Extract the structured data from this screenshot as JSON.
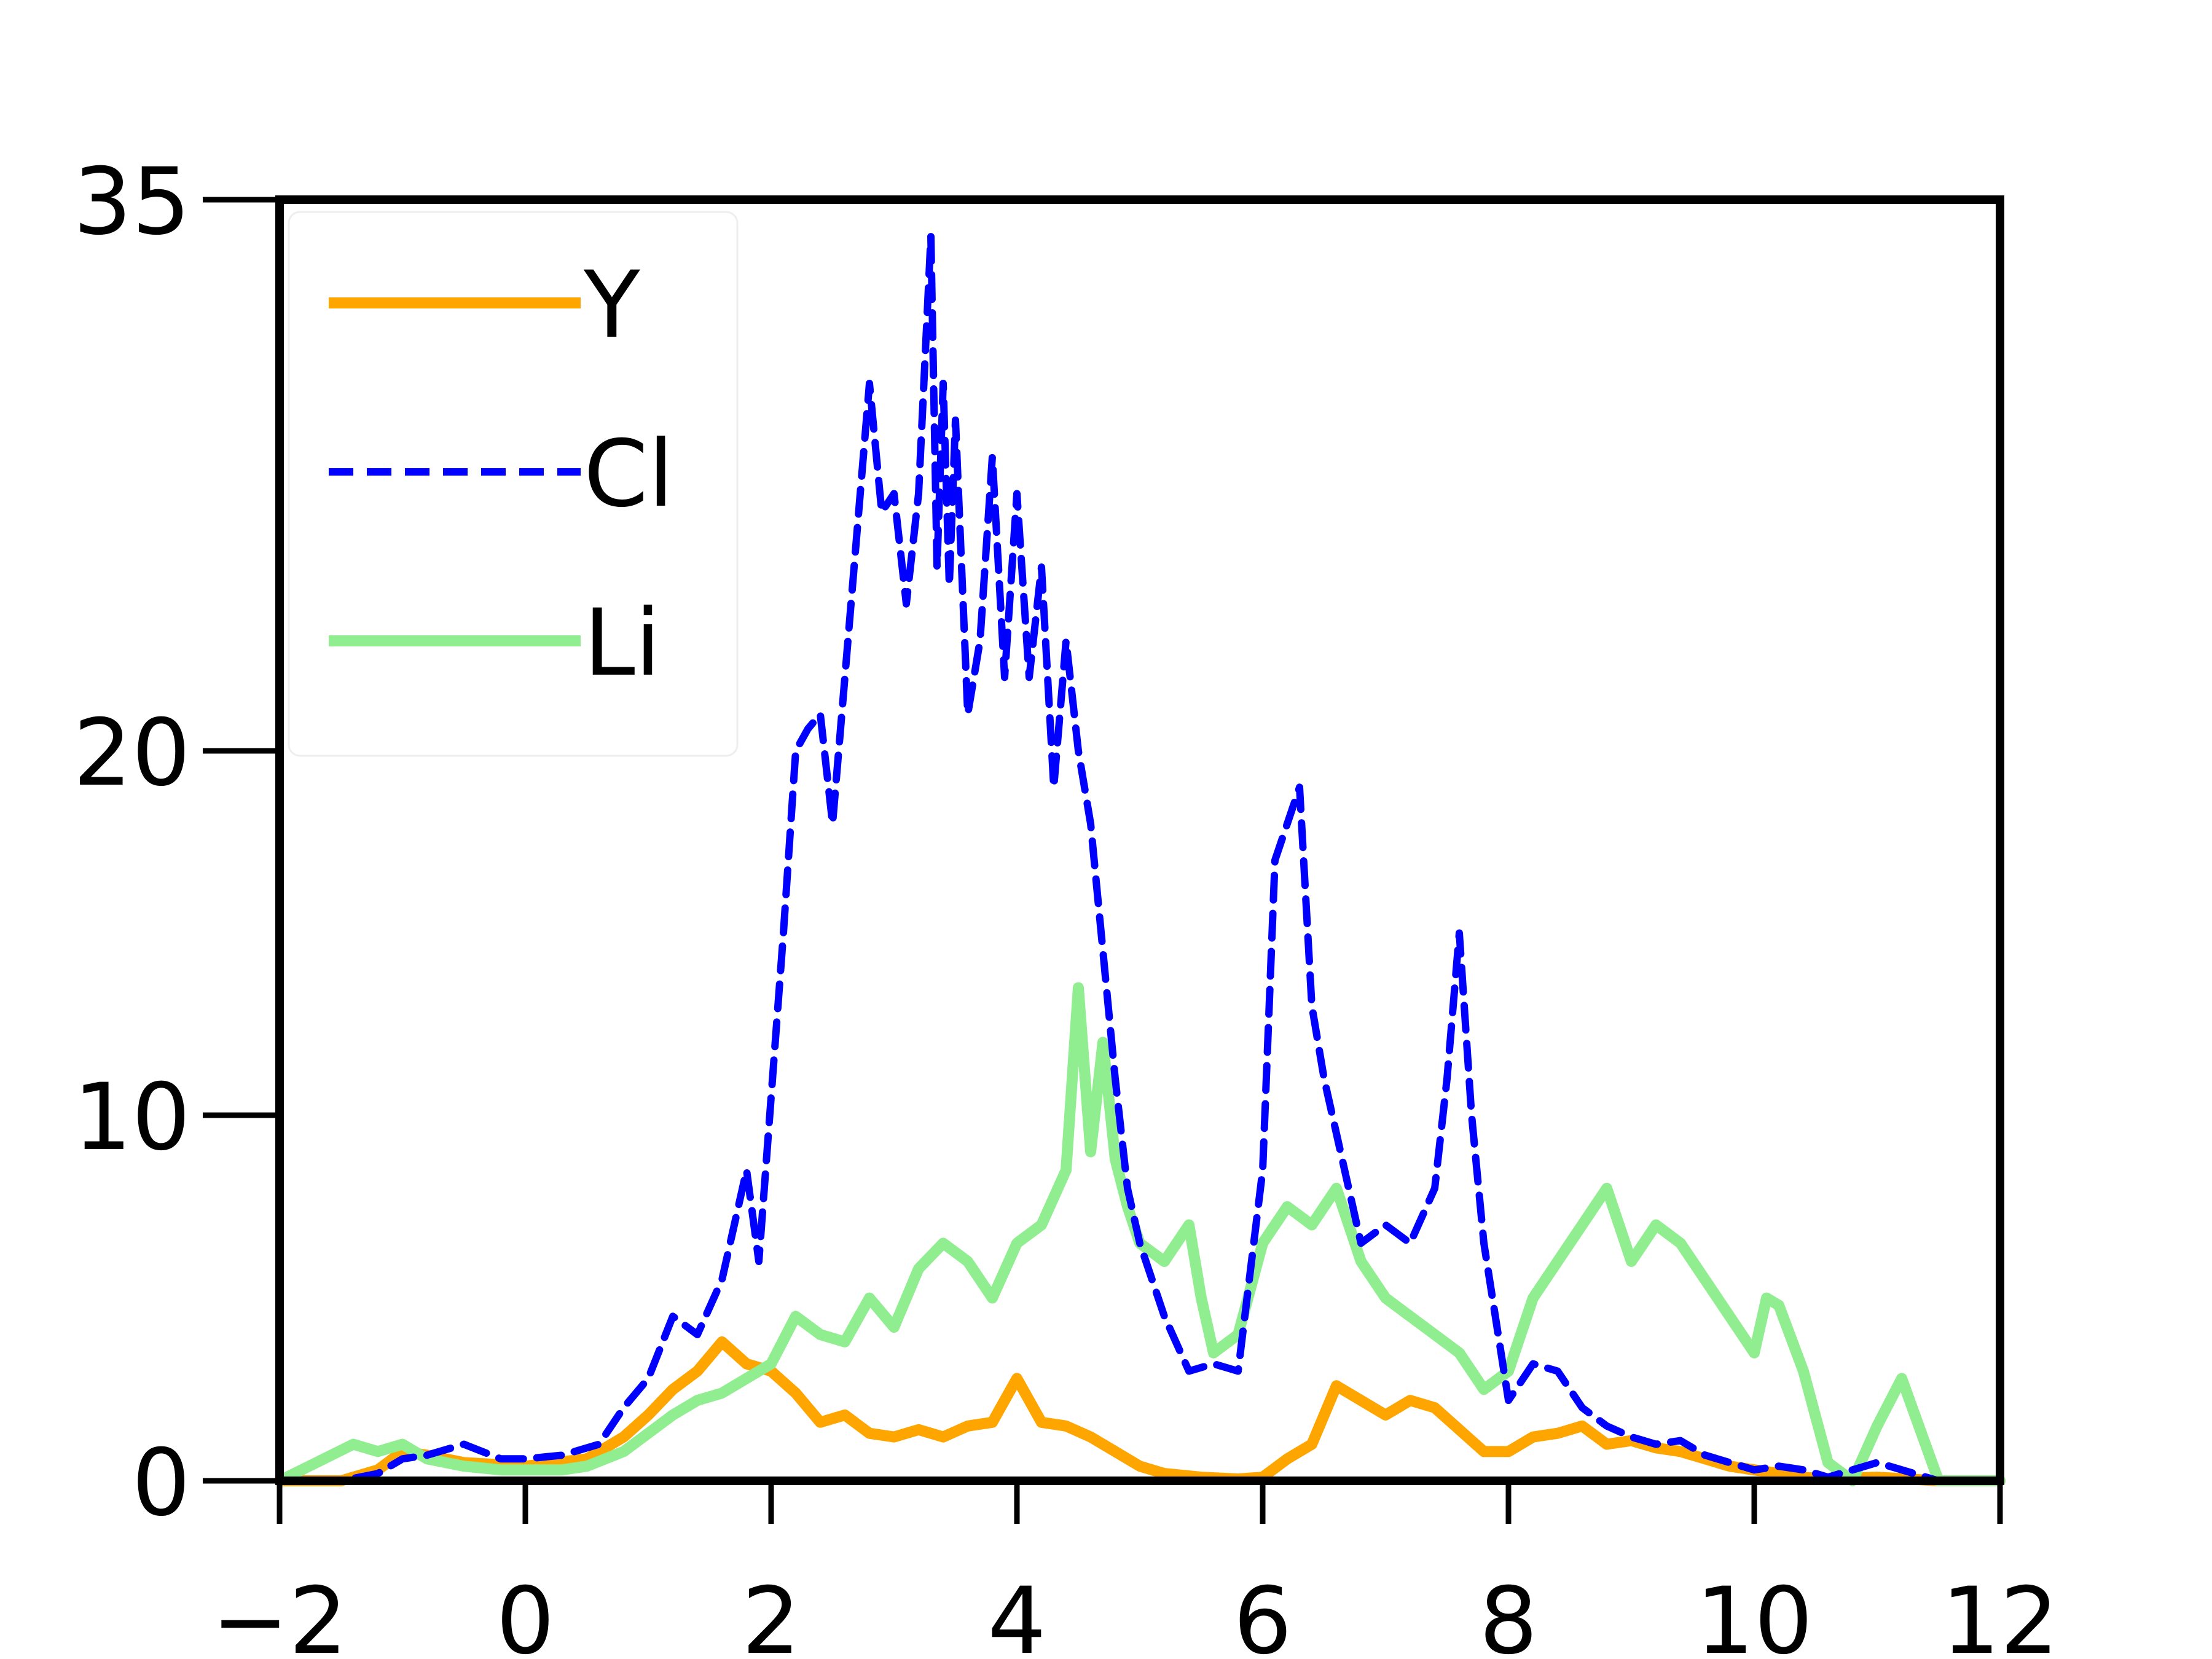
{
  "chart_data": {
    "type": "line",
    "title": "",
    "xlabel": "",
    "ylabel": "",
    "xlim": [
      -2,
      12
    ],
    "ylim": [
      0,
      35
    ],
    "y_axis_scale": "piecewise (ticks 0, 10, 20, 35 at uneven spacing)",
    "xticks": [
      -2,
      0,
      2,
      4,
      6,
      8,
      10,
      12
    ],
    "xtick_labels": [
      "−2",
      "0",
      "2",
      "4",
      "6",
      "8",
      "10",
      "12"
    ],
    "yticks": [
      0,
      10,
      20,
      35
    ],
    "ytick_labels": [
      "0",
      "10",
      "20",
      "35"
    ],
    "grid": false,
    "legend": {
      "position": "top-left"
    },
    "series": [
      {
        "name": "Y",
        "color": "#FFA500",
        "style": "solid",
        "x": [
          -2,
          -1.5,
          -1.2,
          -1,
          -0.8,
          -0.5,
          0,
          0.5,
          0.8,
          1,
          1.2,
          1.4,
          1.6,
          1.8,
          2,
          2.2,
          2.4,
          2.6,
          2.8,
          3,
          3.2,
          3.4,
          3.6,
          3.8,
          4,
          4.2,
          4.4,
          4.6,
          4.8,
          5,
          5.2,
          5.5,
          5.8,
          6,
          6.2,
          6.4,
          6.6,
          6.8,
          7,
          7.2,
          7.4,
          7.6,
          7.8,
          8,
          8.2,
          8.4,
          8.6,
          8.8,
          9,
          9.2,
          9.4,
          9.6,
          9.8,
          10,
          10.2,
          10.4,
          10.6,
          11,
          11.5,
          12
        ],
        "y": [
          0,
          0,
          0.3,
          0.8,
          0.7,
          0.5,
          0.4,
          0.6,
          1.2,
          1.8,
          2.5,
          3.0,
          3.8,
          3.2,
          3.0,
          2.4,
          1.6,
          1.8,
          1.3,
          1.2,
          1.4,
          1.2,
          1.5,
          1.6,
          2.8,
          1.6,
          1.5,
          1.2,
          0.8,
          0.4,
          0.2,
          0.1,
          0.05,
          0.1,
          0.6,
          1.0,
          2.6,
          2.2,
          1.8,
          2.2,
          2.0,
          1.4,
          0.8,
          0.8,
          1.2,
          1.3,
          1.5,
          1.0,
          1.1,
          0.9,
          0.8,
          0.6,
          0.4,
          0.3,
          0.2,
          0.1,
          0.05,
          0.1,
          0,
          0
        ]
      },
      {
        "name": "Cl",
        "color": "#0000FF",
        "style": "dashed",
        "x": [
          -2,
          -1.5,
          -1.2,
          -1,
          -0.8,
          -0.5,
          -0.2,
          0,
          0.3,
          0.6,
          0.8,
          1,
          1.2,
          1.4,
          1.6,
          1.8,
          1.9,
          2,
          2.1,
          2.2,
          2.3,
          2.4,
          2.5,
          2.6,
          2.7,
          2.8,
          2.9,
          3,
          3.1,
          3.2,
          3.3,
          3.35,
          3.4,
          3.45,
          3.5,
          3.6,
          3.7,
          3.8,
          3.9,
          4,
          4.1,
          4.2,
          4.3,
          4.4,
          4.5,
          4.6,
          4.7,
          4.8,
          4.9,
          5,
          5.2,
          5.4,
          5.6,
          5.8,
          6,
          6.1,
          6.2,
          6.3,
          6.4,
          6.5,
          6.6,
          6.7,
          6.8,
          7,
          7.2,
          7.4,
          7.5,
          7.6,
          7.7,
          7.8,
          8,
          8.2,
          8.4,
          8.6,
          8.8,
          9,
          9.2,
          9.4,
          9.6,
          9.8,
          10,
          10.2,
          10.4,
          10.6,
          11,
          11.5,
          12
        ],
        "y": [
          0,
          0,
          0.2,
          0.6,
          0.7,
          1.0,
          0.6,
          0.6,
          0.7,
          1.0,
          2.0,
          2.8,
          4.5,
          4.0,
          5.5,
          8.5,
          6.0,
          10.5,
          15.0,
          20.0,
          20.6,
          21.0,
          18.0,
          22.0,
          26.0,
          30.0,
          26.5,
          27.0,
          24.0,
          27.0,
          34.0,
          25.0,
          30.0,
          24.5,
          29.0,
          21.0,
          23.0,
          28.0,
          22.0,
          27.0,
          22.0,
          25.0,
          19.0,
          23.0,
          20.0,
          18.0,
          14.5,
          11.0,
          8.0,
          6.5,
          4.5,
          3.0,
          3.2,
          3.0,
          8.5,
          17.0,
          18.0,
          19.0,
          13.0,
          11.0,
          9.5,
          8.0,
          6.5,
          7.0,
          6.5,
          8.0,
          11.0,
          15.0,
          10.0,
          6.5,
          2.2,
          3.2,
          3.0,
          2.0,
          1.5,
          1.2,
          1.0,
          1.1,
          0.7,
          0.5,
          0.3,
          0.4,
          0.3,
          0.1,
          0.5,
          0,
          0
        ]
      },
      {
        "name": "Li",
        "color": "#90EE90",
        "style": "solid",
        "x": [
          -2,
          -1.7,
          -1.4,
          -1.2,
          -1,
          -0.8,
          -0.5,
          -0.2,
          0,
          0.3,
          0.5,
          0.8,
          1,
          1.2,
          1.4,
          1.6,
          1.8,
          2,
          2.2,
          2.4,
          2.6,
          2.8,
          3,
          3.2,
          3.4,
          3.6,
          3.8,
          4,
          4.2,
          4.4,
          4.5,
          4.6,
          4.7,
          4.8,
          4.9,
          5,
          5.2,
          5.4,
          5.5,
          5.6,
          5.8,
          6,
          6.2,
          6.4,
          6.6,
          6.8,
          7,
          7.2,
          7.4,
          7.6,
          7.8,
          8,
          8.2,
          8.4,
          8.6,
          8.8,
          9,
          9.2,
          9.4,
          9.6,
          9.8,
          10,
          10.1,
          10.2,
          10.4,
          10.6,
          10.8,
          11,
          11.2,
          11.5,
          12
        ],
        "y": [
          0,
          0.5,
          1.0,
          0.8,
          1.0,
          0.6,
          0.4,
          0.3,
          0.3,
          0.3,
          0.4,
          0.8,
          1.3,
          1.8,
          2.2,
          2.4,
          2.8,
          3.2,
          4.5,
          4.0,
          3.8,
          5.0,
          4.2,
          5.8,
          6.5,
          6.0,
          5.0,
          6.5,
          7.0,
          8.5,
          13.5,
          9.0,
          12.0,
          8.8,
          7.5,
          6.5,
          6.0,
          7.0,
          5.0,
          3.5,
          4.0,
          6.5,
          7.5,
          7.0,
          8.0,
          6.0,
          5.0,
          4.5,
          4.0,
          3.5,
          2.5,
          3.0,
          5.0,
          6.0,
          7.0,
          8.0,
          6.0,
          7.0,
          6.5,
          5.5,
          4.5,
          3.5,
          5.0,
          4.8,
          3.0,
          0.5,
          0,
          1.5,
          2.8,
          0,
          0
        ]
      }
    ]
  }
}
